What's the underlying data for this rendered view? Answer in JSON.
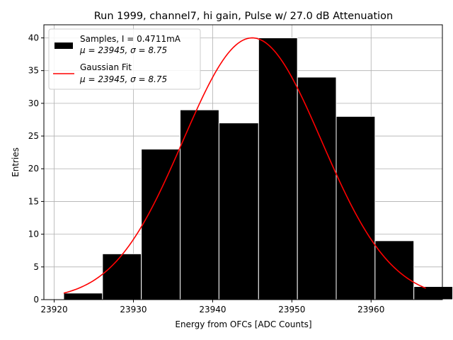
{
  "chart_data": {
    "type": "bar",
    "title": "Run 1999, channel7, hi gain, Pulse w/ 27.0 dB Attenuation",
    "xlabel": "Energy from OFCs [ADC Counts]",
    "ylabel": "Entries",
    "xlim": [
      23918.7,
      23969.0
    ],
    "ylim": [
      0,
      42
    ],
    "grid": true,
    "xticks": [
      23920,
      23930,
      23940,
      23950,
      23960
    ],
    "yticks": [
      0,
      5,
      10,
      15,
      20,
      25,
      30,
      35,
      40
    ],
    "histogram": {
      "name": "Samples",
      "bin_edges": [
        23921.2,
        23926.1,
        23931.0,
        23935.9,
        23940.8,
        23945.8,
        23950.7,
        23955.6,
        23960.5,
        23965.4,
        23970.3
      ],
      "counts": [
        1,
        7,
        23,
        29,
        27,
        40,
        34,
        28,
        9,
        2
      ],
      "bar_color": "#000000",
      "edge_color": "#ffffff"
    },
    "fit": {
      "name": "Gaussian Fit",
      "mu": 23945,
      "sigma": 8.75,
      "amplitude": 40,
      "x_range": [
        23921.2,
        23966.9
      ],
      "color": "#ff0000"
    },
    "legend": {
      "position": "top-left",
      "samples_line1": "Samples, I = 0.4711mA",
      "samples_line2": "μ = 23945, σ = 8.75",
      "fit_line1": "Gaussian Fit",
      "fit_line2": "μ = 23945, σ = 8.75"
    }
  }
}
